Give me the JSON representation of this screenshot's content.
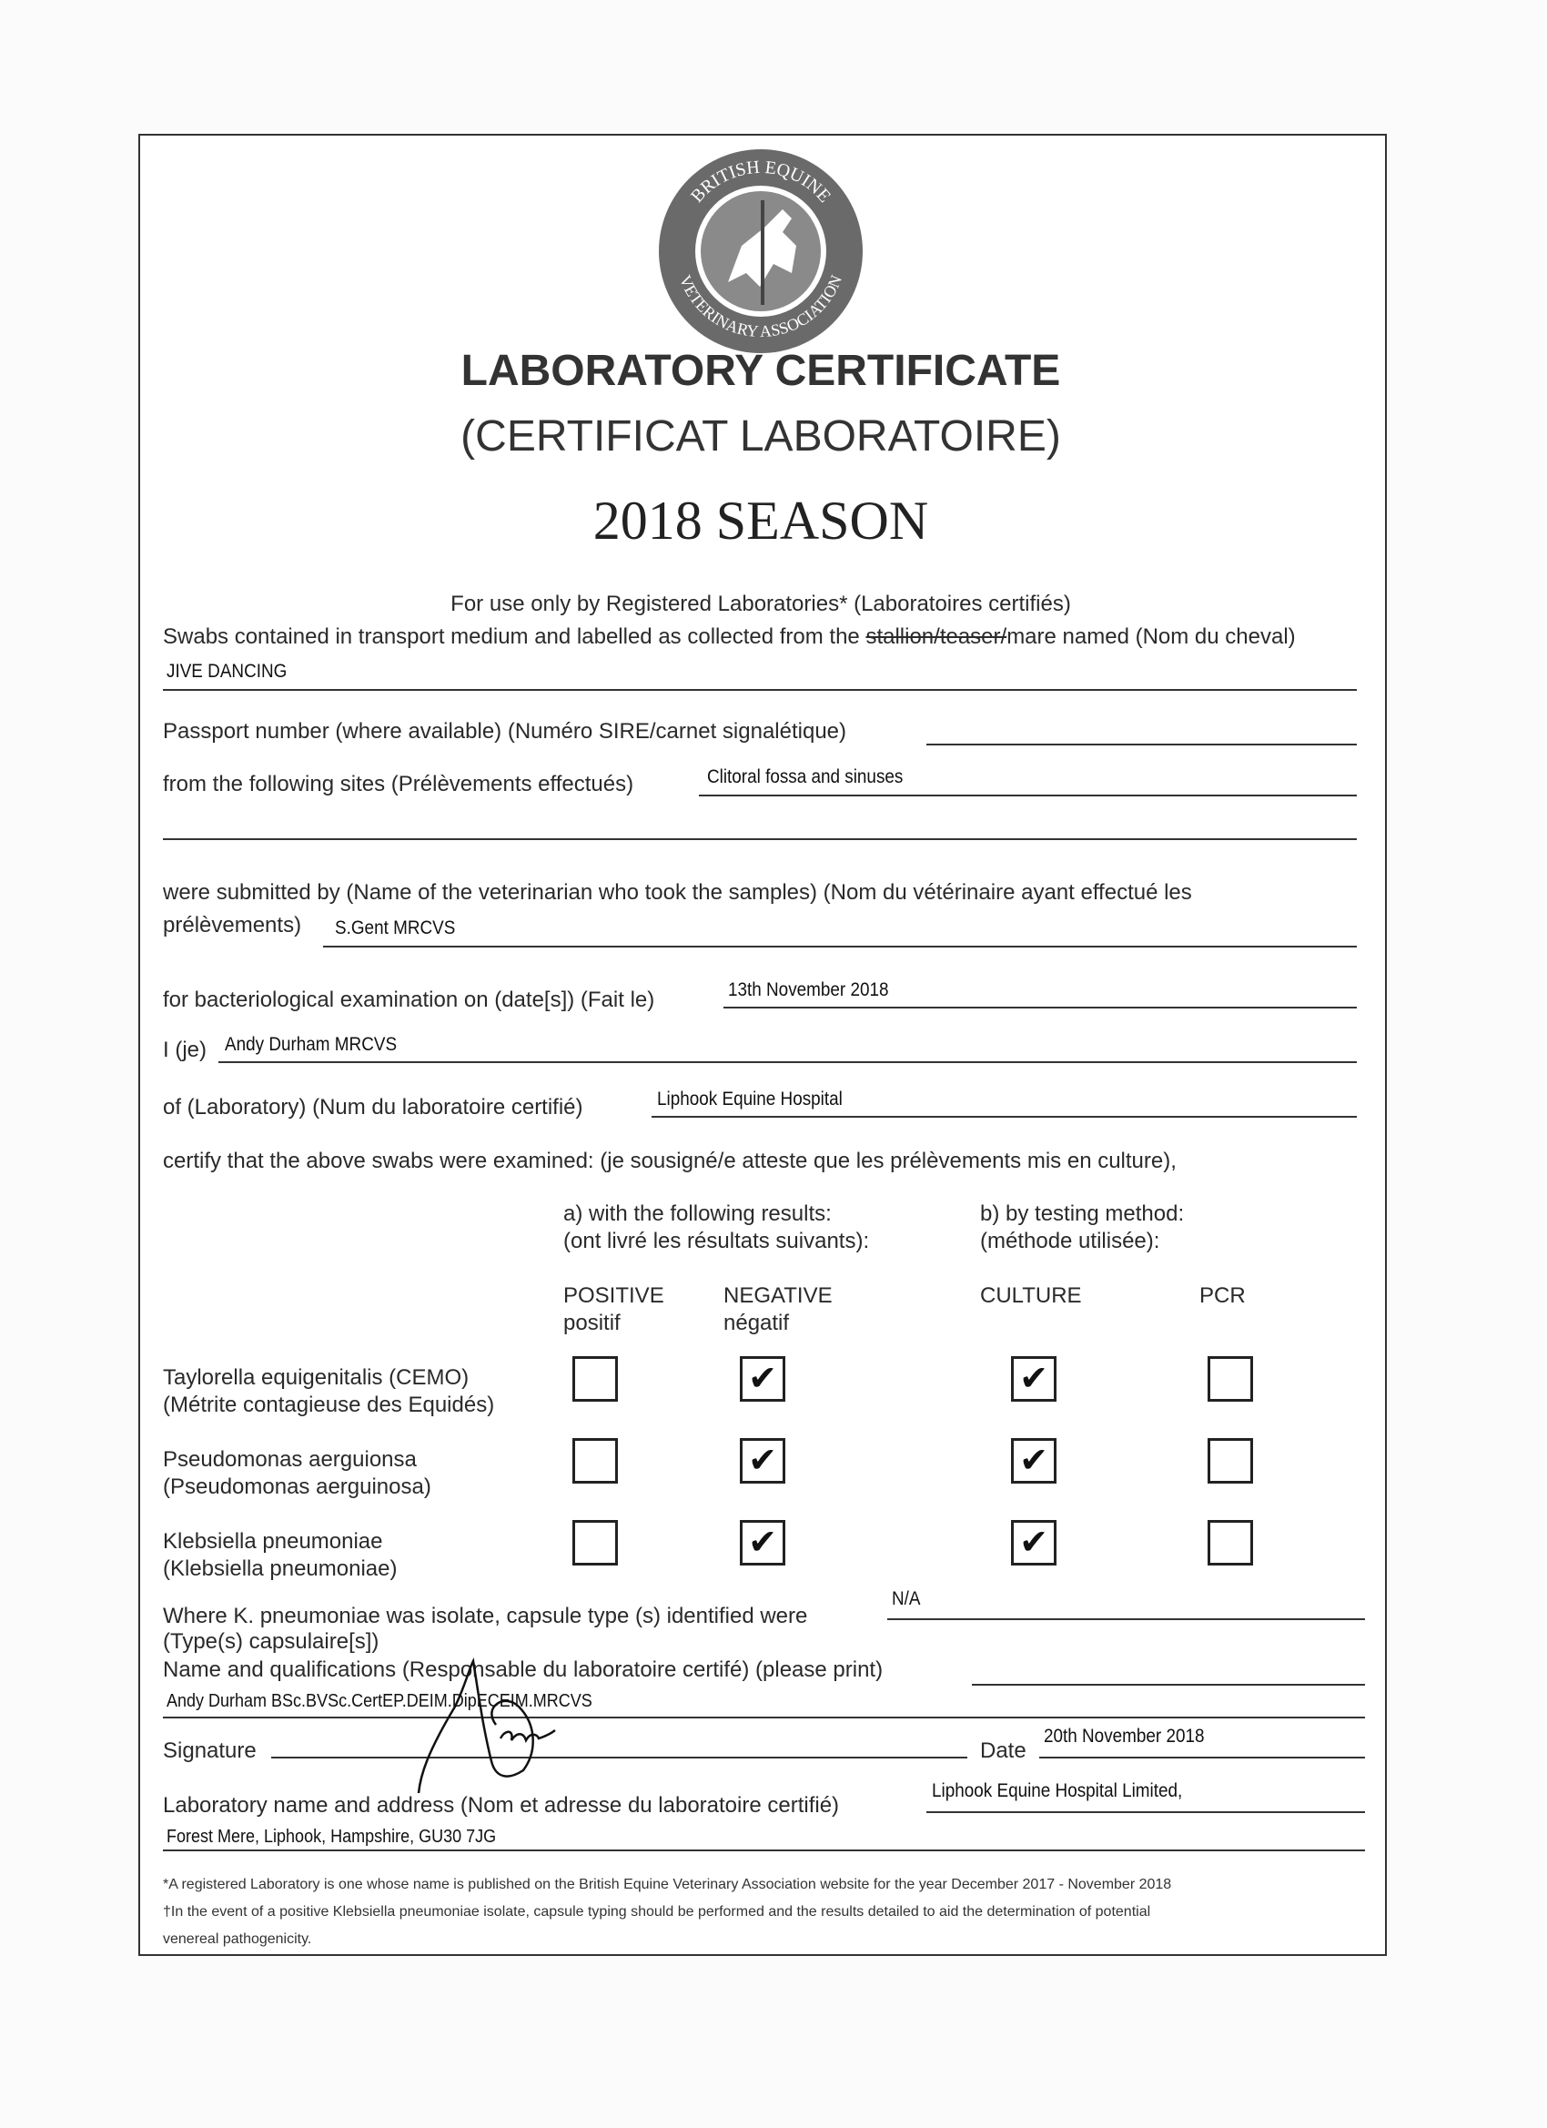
{
  "logo": {
    "text_top": "BRITISH EQUINE",
    "text_bottom": "VETERINARY ASSOCIATION"
  },
  "title": "LABORATORY CERTIFICATE",
  "subtitle": "(CERTIFICAT LABORATOIRE)",
  "season": "2018 SEASON",
  "intro": "For use only by Registered Laboratories* (Laboratoires certifiés)",
  "swabs": {
    "prefix": "Swabs contained in transport medium and labelled as collected from the ",
    "struck": "stallion/teaser/",
    "suffix": "mare named (Nom du cheval)",
    "value": "JIVE DANCING"
  },
  "passport": {
    "label": "Passport number (where available) (Numéro SIRE/carnet signalétique)",
    "value": ""
  },
  "sites": {
    "label": "from the following sites (Prélèvements effectués)",
    "value": "Clitoral fossa and sinuses"
  },
  "submitted": {
    "label1": "were submitted by (Name of the veterinarian who took the samples) (Nom du vétérinaire ayant effectué les",
    "label2": "prélèvements)",
    "value": "S.Gent MRCVS"
  },
  "exam_date": {
    "label": "for bacteriological examination on (date[s]) (Fait le)",
    "value": "13th November 2018"
  },
  "je": {
    "label": "I (je)",
    "value": "Andy Durham MRCVS"
  },
  "lab": {
    "label": "of (Laboratory) (Num du laboratoire certifié)",
    "value": "Liphook Equine Hospital"
  },
  "certify": "certify that the above swabs were examined: (je sousigné/e atteste que les prélèvements mis en culture),",
  "results_header": {
    "a1": "a) with the following results:",
    "a2": "(ont livré les résultats suivants):",
    "b1": "b) by testing method:",
    "b2": "(méthode utilisée):"
  },
  "columns": [
    {
      "en": "POSITIVE",
      "fr": "positif"
    },
    {
      "en": "NEGATIVE",
      "fr": "négatif"
    },
    {
      "en": "CULTURE",
      "fr": ""
    },
    {
      "en": "PCR",
      "fr": ""
    }
  ],
  "rows": [
    {
      "name": "Taylorella equigenitalis (CEMO)",
      "fr": "(Métrite contagieuse des Equidés)",
      "positive": false,
      "negative": true,
      "culture": true,
      "pcr": false
    },
    {
      "name": "Pseudomonas aerguionsa",
      "fr": "(Pseudomonas aerguinosa)",
      "positive": false,
      "negative": true,
      "culture": true,
      "pcr": false
    },
    {
      "name": "Klebsiella pneumoniae",
      "fr": "(Klebsiella pneumoniae)",
      "positive": false,
      "negative": true,
      "culture": true,
      "pcr": false
    }
  ],
  "check_glyph": "✔",
  "capsule": {
    "label": "Where K. pneumoniae was isolate, capsule type (s) identified were",
    "label_fr": "(Type(s) capsulaire[s])",
    "value": "N/A"
  },
  "qualifications": {
    "label": "Name and qualifications (Responsable du laboratoire certifé) (please print)",
    "value": "Andy Durham BSc.BVSc.CertEP.DEIM.DipECEIM.MRCVS"
  },
  "signature": {
    "label": "Signature"
  },
  "date": {
    "label": "Date",
    "value": "20th November 2018"
  },
  "lab_address": {
    "label": "Laboratory name and address (Nom et adresse du laboratoire certifié)",
    "value1": "Liphook Equine Hospital Limited,",
    "value2": "Forest Mere, Liphook, Hampshire, GU30 7JG"
  },
  "footnotes": [
    "*A registered Laboratory is one whose name is published on the British Equine Veterinary Association website for the year December 2017 - November 2018",
    "†In the event of a positive Klebsiella pneumoniae isolate, capsule typing should be performed and the results detailed to aid the determination of potential",
    "venereal pathogenicity."
  ]
}
